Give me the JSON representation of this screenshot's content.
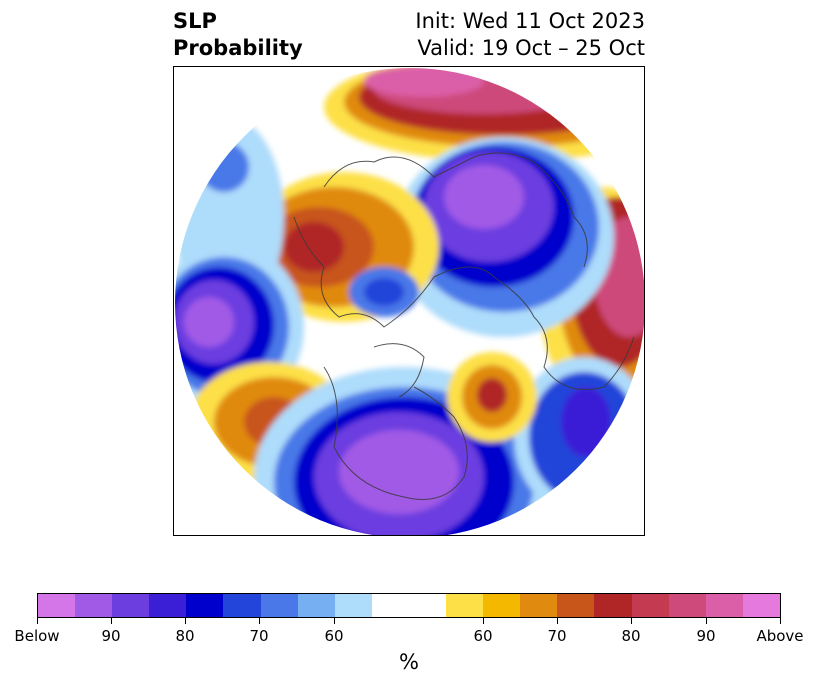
{
  "title": {
    "left_line1": "SLP",
    "left_line2": "Probability",
    "right_line1": "Init: Wed 11 Oct 2023",
    "right_line2": "Valid: 19 Oct – 25 Oct"
  },
  "colors": {
    "below": [
      "#d476e8",
      "#a15ae6",
      "#6c3ee0",
      "#3b1fd6",
      "#0000cc",
      "#2445d9",
      "#4a78e8",
      "#77b0f2",
      "#aedcfb"
    ],
    "neutral": "#ffffff",
    "above": [
      "#fde047",
      "#f5b800",
      "#e08a10",
      "#c8551a",
      "#b02626",
      "#c43a50",
      "#cd4a7a",
      "#db5fa8",
      "#e679dd"
    ]
  },
  "colorbar": {
    "labels": [
      "Below",
      "90",
      "80",
      "70",
      "60",
      "60",
      "70",
      "80",
      "90",
      "Above"
    ],
    "unit": "%"
  }
}
